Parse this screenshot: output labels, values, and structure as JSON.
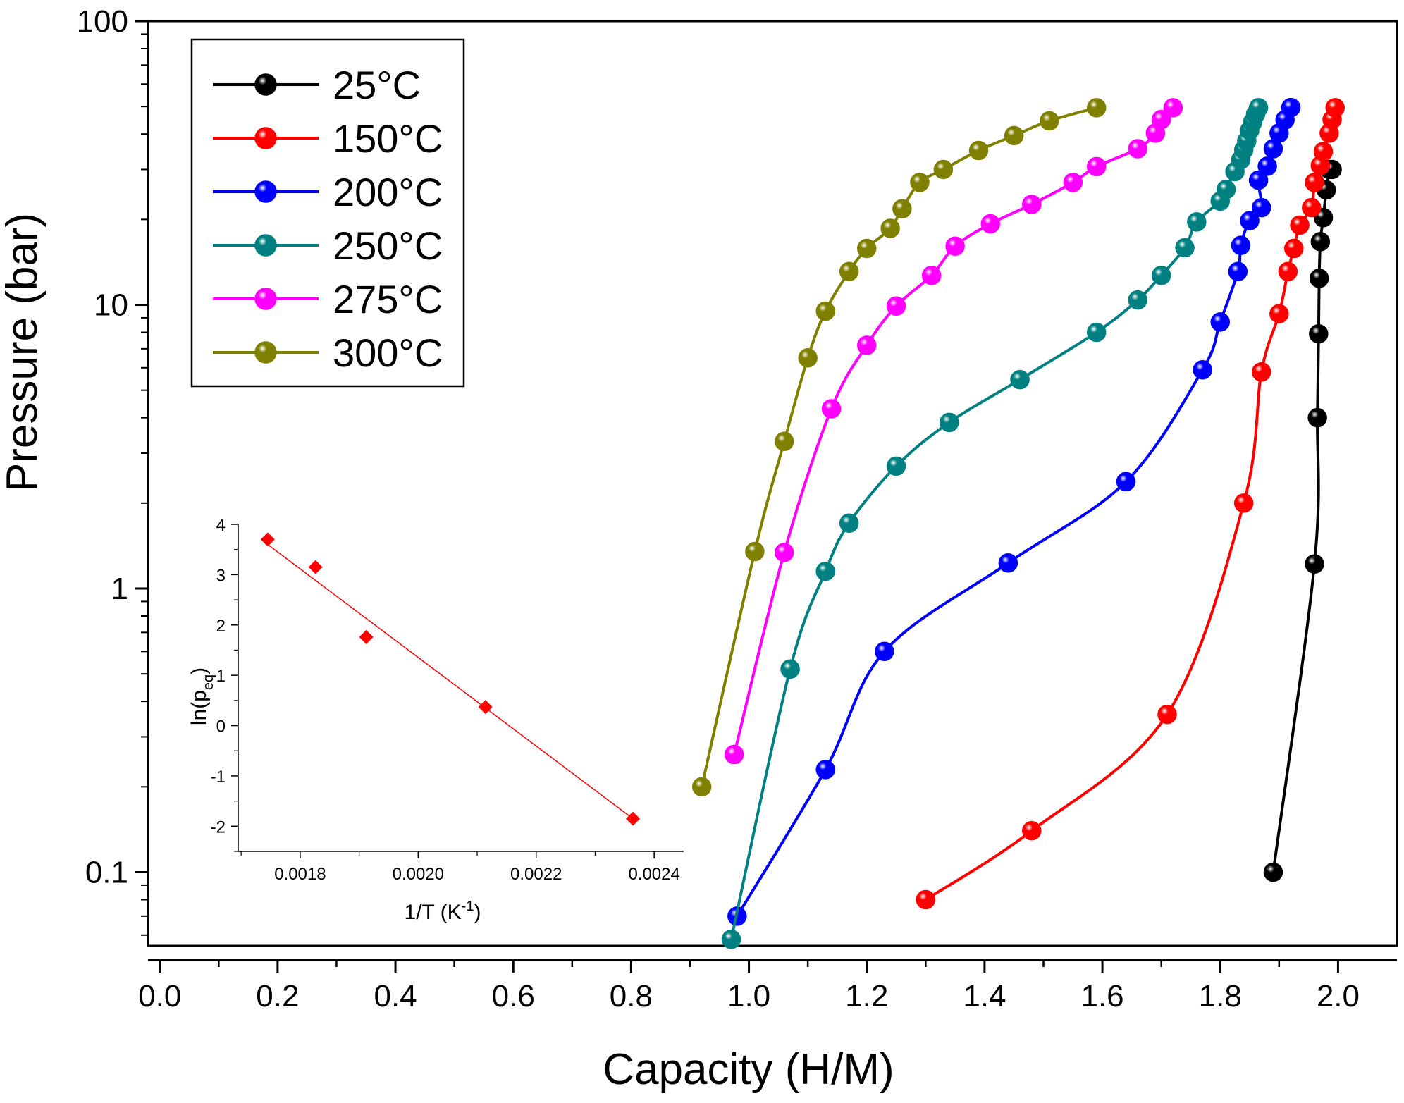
{
  "chart_data": [
    {
      "type": "line",
      "xlabel": "Capacity (H/M)",
      "ylabel": "Pressure (bar)",
      "xlim": [
        -0.02,
        2.1
      ],
      "ylim": [
        0.055,
        100
      ],
      "yscale": "log",
      "xticks": [
        0.0,
        0.2,
        0.4,
        0.6,
        0.8,
        1.0,
        1.2,
        1.4,
        1.6,
        1.8,
        2.0
      ],
      "xtick_labels": [
        "0.0",
        "0.2",
        "0.4",
        "0.6",
        "0.8",
        "1.0",
        "1.2",
        "1.4",
        "1.6",
        "1.8",
        "2.0"
      ],
      "yticks": [
        0.1,
        1,
        10,
        100
      ],
      "ytick_labels": [
        "0.1",
        "1",
        "10",
        "100"
      ],
      "grid": false,
      "legend_position": "top-left",
      "series": [
        {
          "name": "25°C",
          "color": "#000000",
          "x": [
            1.89,
            1.96,
            1.965,
            1.967,
            1.968,
            1.97,
            1.975,
            1.98,
            1.985,
            1.99
          ],
          "y": [
            0.1,
            1.22,
            4.0,
            7.9,
            12.4,
            16.7,
            20.3,
            25.4,
            30.0,
            30.0
          ]
        },
        {
          "name": "150°C",
          "color": "#ff0000",
          "x": [
            1.3,
            1.48,
            1.71,
            1.84,
            1.87,
            1.9,
            1.915,
            1.925,
            1.935,
            1.955,
            1.96,
            1.97,
            1.975,
            1.985,
            1.99,
            1.995
          ],
          "y": [
            0.08,
            0.14,
            0.36,
            2.0,
            5.8,
            9.3,
            13.1,
            15.8,
            19.1,
            22.0,
            27.0,
            31.0,
            34.7,
            40.3,
            45.0,
            49.5
          ]
        },
        {
          "name": "200°C",
          "color": "#0000ff",
          "x": [
            0.98,
            1.13,
            1.23,
            1.44,
            1.64,
            1.77,
            1.8,
            1.83,
            1.835,
            1.85,
            1.87,
            1.865,
            1.88,
            1.89,
            1.9,
            1.91,
            1.92
          ],
          "y": [
            0.07,
            0.23,
            0.6,
            1.23,
            2.38,
            5.9,
            8.7,
            13.1,
            16.2,
            19.8,
            22.0,
            27.5,
            30.8,
            35.5,
            40.3,
            44.9,
            49.6
          ]
        },
        {
          "name": "250°C",
          "color": "#008080",
          "x": [
            0.97,
            1.07,
            1.13,
            1.17,
            1.25,
            1.34,
            1.46,
            1.59,
            1.66,
            1.7,
            1.74,
            1.76,
            1.8,
            1.81,
            1.825,
            1.835,
            1.84,
            1.845,
            1.85,
            1.855,
            1.86,
            1.865
          ],
          "y": [
            0.058,
            0.52,
            1.15,
            1.7,
            2.7,
            3.85,
            5.45,
            8.0,
            10.4,
            12.7,
            15.9,
            19.6,
            23.2,
            25.5,
            29.5,
            32.5,
            35.2,
            37.8,
            41.2,
            44.0,
            47.0,
            49.5
          ]
        },
        {
          "name": "275°C",
          "color": "#ff00ff",
          "x": [
            0.975,
            1.06,
            1.14,
            1.2,
            1.25,
            1.31,
            1.35,
            1.41,
            1.48,
            1.55,
            1.59,
            1.66,
            1.69,
            1.7,
            1.72
          ],
          "y": [
            0.26,
            1.34,
            4.3,
            7.2,
            9.9,
            12.7,
            16.1,
            19.3,
            22.6,
            27.0,
            30.7,
            35.5,
            40.3,
            45.0,
            49.5
          ]
        },
        {
          "name": "300°C",
          "color": "#808000",
          "x": [
            0.92,
            1.01,
            1.06,
            1.1,
            1.13,
            1.17,
            1.2,
            1.24,
            1.26,
            1.29,
            1.33,
            1.39,
            1.45,
            1.51,
            1.59
          ],
          "y": [
            0.2,
            1.35,
            3.3,
            6.5,
            9.5,
            13.1,
            15.8,
            18.6,
            21.8,
            27.0,
            30.0,
            35.0,
            39.5,
            44.5,
            49.5
          ]
        }
      ]
    },
    {
      "type": "scatter",
      "xlabel": "1/T (K",
      "xlabel_sup": "-1",
      "xlabel_end": ")",
      "ylabel": "ln(p",
      "ylabel_sub": "eq",
      "ylabel_end": ")",
      "xlim": [
        0.001695,
        0.00245
      ],
      "ylim": [
        -2.5,
        4.0
      ],
      "xticks": [
        0.0018,
        0.002,
        0.0022,
        0.0024
      ],
      "xtick_labels": [
        "0.0018",
        "0.0020",
        "0.0022",
        "0.0024"
      ],
      "yticks": [
        -2,
        -1,
        0,
        1,
        2,
        3,
        4
      ],
      "ytick_labels": [
        "-2",
        "-1",
        "0",
        "1",
        "2",
        "3",
        "4"
      ],
      "grid": false,
      "marker": "diamond",
      "color": "#ff0000",
      "x": [
        0.001745,
        0.001826,
        0.001912,
        0.002114,
        0.002364
      ],
      "y": [
        3.7,
        3.15,
        1.76,
        0.37,
        -1.85
      ],
      "fit_line": {
        "x": [
          0.001745,
          0.002364
        ],
        "y": [
          3.6,
          -1.85
        ]
      }
    }
  ]
}
